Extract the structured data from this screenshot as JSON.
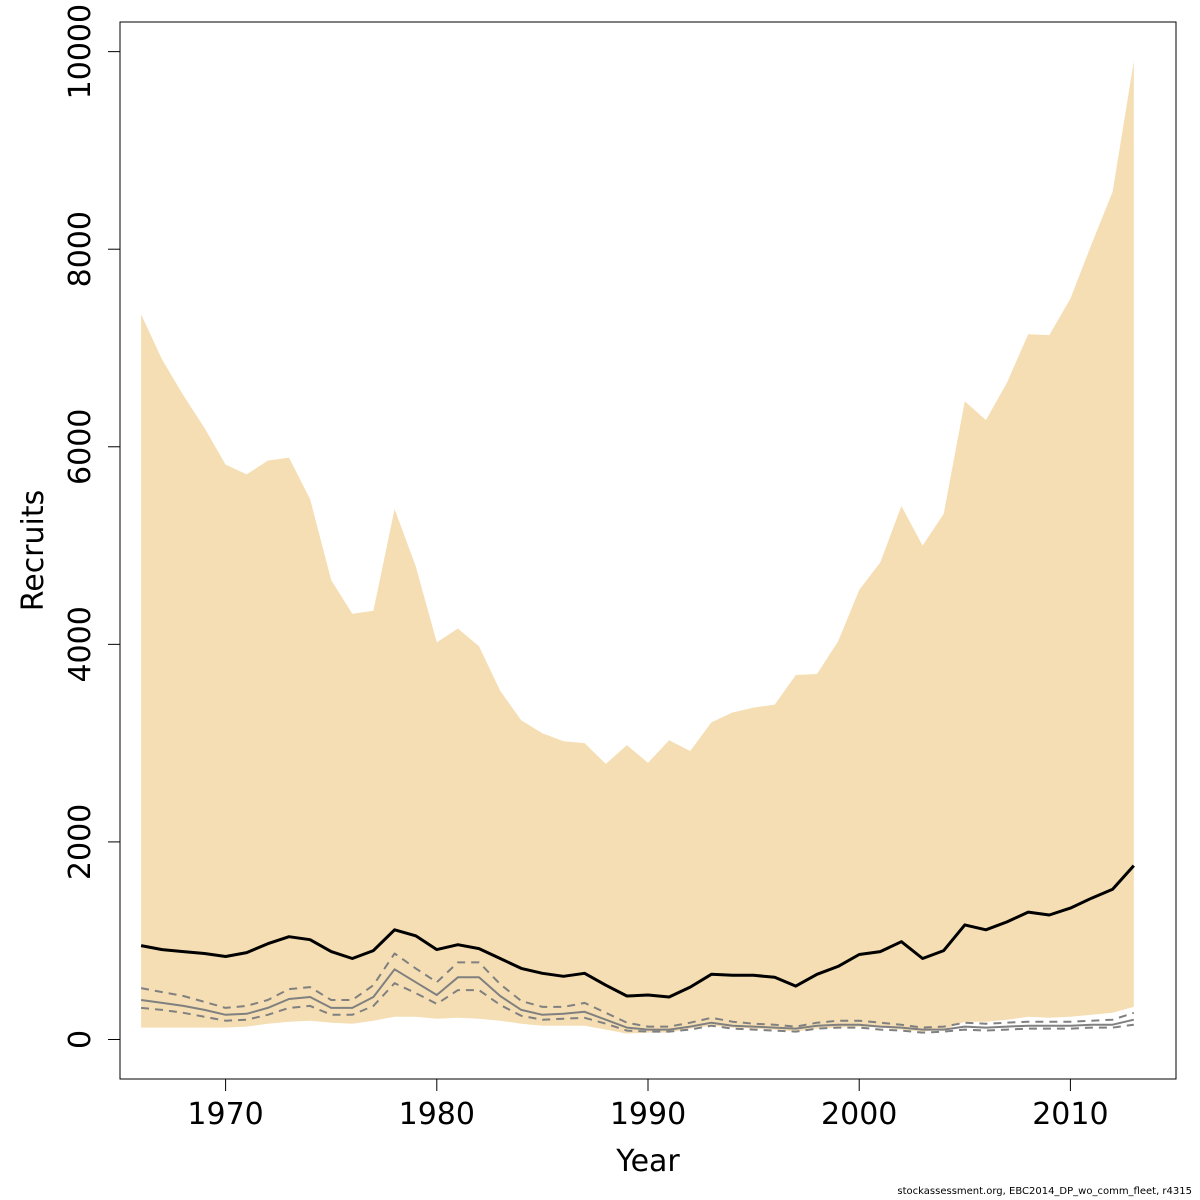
{
  "chart_data": {
    "type": "area",
    "xlabel": "Year",
    "ylabel": "Recruits",
    "xlim": [
      1965,
      2015
    ],
    "ylim": [
      -400,
      10300
    ],
    "xticks": [
      1970,
      1980,
      1990,
      2000,
      2010
    ],
    "yticks": [
      0,
      2000,
      4000,
      6000,
      8000,
      10000
    ],
    "grid": false,
    "colors": {
      "band_fill": "#f5deb3",
      "median_line": "#000000",
      "comparison_line": "#808080"
    },
    "x": [
      1966,
      1967,
      1968,
      1969,
      1970,
      1971,
      1972,
      1973,
      1974,
      1975,
      1976,
      1977,
      1978,
      1979,
      1980,
      1981,
      1982,
      1983,
      1984,
      1985,
      1986,
      1987,
      1988,
      1989,
      1990,
      1991,
      1992,
      1993,
      1994,
      1995,
      1996,
      1997,
      1998,
      1999,
      2000,
      2001,
      2002,
      2003,
      2004,
      2005,
      2006,
      2007,
      2008,
      2009,
      2010,
      2011,
      2012,
      2013
    ],
    "band": {
      "upper": [
        7340,
        6880,
        6520,
        6190,
        5820,
        5720,
        5860,
        5890,
        5470,
        4650,
        4310,
        4340,
        5370,
        4790,
        4020,
        4160,
        3980,
        3530,
        3230,
        3100,
        3020,
        3000,
        2790,
        2980,
        2800,
        3030,
        2920,
        3210,
        3310,
        3360,
        3390,
        3690,
        3700,
        4030,
        4550,
        4830,
        5400,
        5000,
        5320,
        6460,
        6270,
        6650,
        7140,
        7130,
        7500,
        8050,
        8580,
        9900
      ],
      "lower": [
        120,
        120,
        120,
        120,
        120,
        130,
        160,
        180,
        190,
        170,
        160,
        190,
        230,
        230,
        210,
        220,
        210,
        190,
        160,
        140,
        140,
        140,
        100,
        60,
        70,
        70,
        110,
        140,
        120,
        110,
        100,
        80,
        110,
        120,
        130,
        120,
        100,
        80,
        100,
        180,
        180,
        200,
        230,
        220,
        230,
        250,
        270,
        330
      ]
    },
    "series": [
      {
        "style": "solid",
        "values": [
          950,
          910,
          890,
          870,
          840,
          880,
          970,
          1040,
          1010,
          890,
          820,
          900,
          1110,
          1050,
          910,
          960,
          920,
          820,
          720,
          670,
          640,
          670,
          550,
          440,
          450,
          430,
          530,
          660,
          650,
          650,
          630,
          540,
          660,
          740,
          860,
          890,
          990,
          820,
          900,
          1160,
          1110,
          1190,
          1290,
          1260,
          1330,
          1430,
          1520,
          1760
        ]
      },
      {
        "style": "solid",
        "values": [
          400,
          370,
          340,
          300,
          250,
          260,
          320,
          410,
          430,
          320,
          320,
          430,
          710,
          580,
          450,
          630,
          630,
          440,
          300,
          250,
          260,
          280,
          200,
          120,
          100,
          100,
          130,
          170,
          140,
          130,
          120,
          110,
          140,
          150,
          150,
          130,
          120,
          100,
          100,
          130,
          120,
          130,
          140,
          140,
          140,
          150,
          150,
          200
        ]
      },
      {
        "style": "dashed",
        "values": [
          520,
          480,
          440,
          380,
          320,
          340,
          400,
          510,
          530,
          400,
          400,
          550,
          870,
          720,
          580,
          780,
          780,
          560,
          390,
          330,
          330,
          370,
          270,
          170,
          130,
          130,
          170,
          220,
          180,
          160,
          150,
          130,
          170,
          190,
          190,
          170,
          150,
          120,
          130,
          170,
          160,
          170,
          180,
          180,
          180,
          190,
          200,
          270
        ]
      },
      {
        "style": "dashed",
        "values": [
          320,
          300,
          270,
          230,
          190,
          200,
          250,
          320,
          340,
          250,
          250,
          340,
          570,
          470,
          360,
          500,
          500,
          350,
          240,
          200,
          210,
          220,
          160,
          90,
          80,
          80,
          100,
          140,
          110,
          100,
          90,
          80,
          110,
          120,
          120,
          100,
          90,
          70,
          80,
          100,
          90,
          100,
          110,
          110,
          110,
          120,
          120,
          150
        ]
      }
    ]
  },
  "footer_text": "stockassessment.org, EBC2014_DP_wo_comm_fleet, r4315"
}
